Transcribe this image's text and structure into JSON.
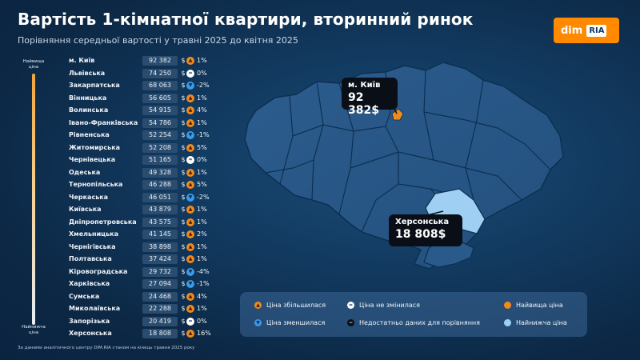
{
  "header": {
    "title": "Вартість 1-кімнатної квартири, вторинний ринок",
    "subtitle": "Порівняння середньої вартості у травні 2025 до квітня 2025",
    "logo_left": "dim",
    "logo_right": "RIA"
  },
  "scale": {
    "top_label": "Найвища ціна",
    "bottom_label": "Найнижча ціна"
  },
  "currency": "$",
  "chart_data": {
    "type": "table",
    "columns": [
      "region",
      "price",
      "currency",
      "trend",
      "change"
    ],
    "rows": [
      {
        "region": "м. Київ",
        "price": "92 382",
        "trend": "up",
        "change": "1%"
      },
      {
        "region": "Львівська",
        "price": "74 250",
        "trend": "same",
        "change": "0%"
      },
      {
        "region": "Закарпатська",
        "price": "68 063",
        "trend": "down",
        "change": "-2%"
      },
      {
        "region": "Вінницька",
        "price": "56 605",
        "trend": "up",
        "change": "1%"
      },
      {
        "region": "Волинська",
        "price": "54 915",
        "trend": "up",
        "change": "4%"
      },
      {
        "region": "Івано-Франківська",
        "price": "54 786",
        "trend": "up",
        "change": "1%"
      },
      {
        "region": "Рівненська",
        "price": "52 254",
        "trend": "down",
        "change": "-1%"
      },
      {
        "region": "Житомирська",
        "price": "52 208",
        "trend": "up",
        "change": "5%"
      },
      {
        "region": "Чернівецька",
        "price": "51 165",
        "trend": "same",
        "change": "0%"
      },
      {
        "region": "Одеська",
        "price": "49 328",
        "trend": "up",
        "change": "1%"
      },
      {
        "region": "Тернопільська",
        "price": "46 288",
        "trend": "up",
        "change": "5%"
      },
      {
        "region": "Черкаська",
        "price": "46 051",
        "trend": "down",
        "change": "-2%"
      },
      {
        "region": "Київська",
        "price": "43 879",
        "trend": "up",
        "change": "1%"
      },
      {
        "region": "Дніпропетровська",
        "price": "43 575",
        "trend": "up",
        "change": "1%"
      },
      {
        "region": "Хмельницька",
        "price": "41 145",
        "trend": "up",
        "change": "2%"
      },
      {
        "region": "Чернігівська",
        "price": "38 898",
        "trend": "up",
        "change": "1%"
      },
      {
        "region": "Полтавська",
        "price": "37 424",
        "trend": "up",
        "change": "1%"
      },
      {
        "region": "Кіровоградська",
        "price": "29 732",
        "trend": "down",
        "change": "-4%"
      },
      {
        "region": "Харківська",
        "price": "27 094",
        "trend": "down",
        "change": "-1%"
      },
      {
        "region": "Сумська",
        "price": "24 468",
        "trend": "up",
        "change": "4%"
      },
      {
        "region": "Миколаївська",
        "price": "22 288",
        "trend": "up",
        "change": "1%"
      },
      {
        "region": "Запорізька",
        "price": "20 419",
        "trend": "same",
        "change": "0%"
      },
      {
        "region": "Херсонська",
        "price": "18 808",
        "trend": "up",
        "change": "16%"
      }
    ]
  },
  "source_note": "За даними аналітичного центру DIM.RIA станом на кінець травня 2025 року",
  "map": {
    "highest": {
      "city": "м. Київ",
      "value": "92 382$"
    },
    "lowest": {
      "city": "Херсонська",
      "value": "18 808$"
    }
  },
  "legend": {
    "up": "Ціна збільшилася",
    "same": "Ціна не змінилася",
    "high": "Найвища ціна",
    "down": "Ціна зменшилася",
    "na": "Недостатньо даних для порівняння",
    "low": "Найнижча ціна"
  },
  "colors": {
    "accent_orange": "#f08a1d",
    "accent_blue": "#3b9be6",
    "lowest_region": "#9fd0f3",
    "background": "#123a60"
  }
}
